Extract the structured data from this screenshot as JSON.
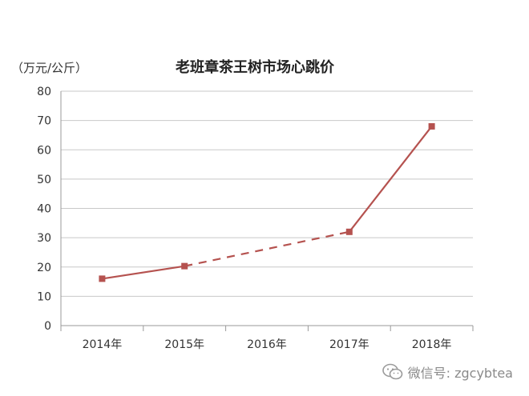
{
  "chart_data": {
    "type": "line",
    "title": "老班章茶王树市场心跳价",
    "unit_label": "（万元/公斤）",
    "categories": [
      "2014年",
      "2015年",
      "2016年",
      "2017年",
      "2018年"
    ],
    "series": [
      {
        "values": [
          16,
          20.3,
          null,
          32,
          68
        ],
        "gap_style": "dashed"
      }
    ],
    "ylim": [
      0,
      80
    ],
    "yticks": [
      0,
      10,
      20,
      30,
      40,
      50,
      60,
      70,
      80
    ],
    "grid": true,
    "colors": {
      "series": "#b5524f",
      "grid": "#c8c8c8",
      "axis": "#9a9a9a"
    }
  },
  "watermark": {
    "icon": "wechat-icon",
    "text": "微信号: zgcybtea"
  }
}
